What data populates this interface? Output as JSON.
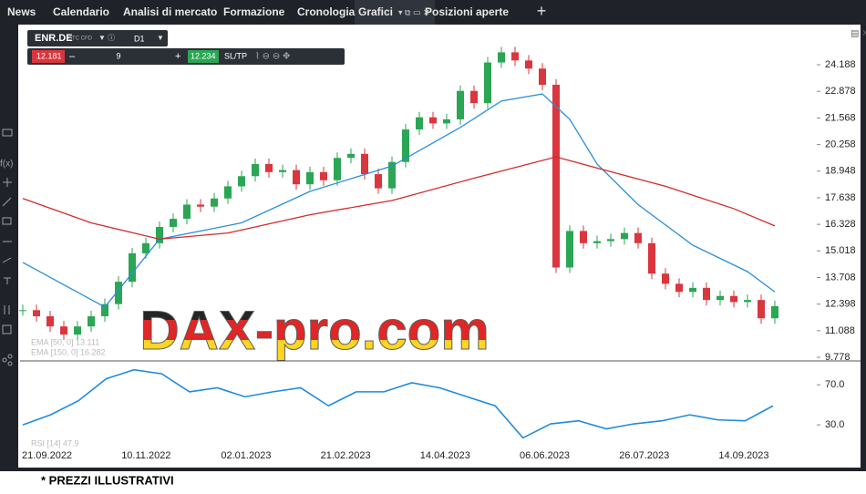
{
  "nav": {
    "tabs": [
      "News",
      "Calendario",
      "Analisi di mercato",
      "Formazione",
      "Cronologia",
      "Grafici"
    ],
    "open_positions": "Posizioni aperte",
    "add": "+"
  },
  "toolbar": {
    "symbol": "ENR.DE",
    "kind": "STC CFD",
    "timeframe": "D1",
    "sell": "12.181",
    "quantity": "9",
    "buy": "12.234",
    "sltp": "SL/TP"
  },
  "price": {
    "ylim": [
      9.6,
      26.12
    ],
    "yticks": [
      24.188,
      22.878,
      21.568,
      20.258,
      18.948,
      17.638,
      16.328,
      15.018,
      13.708,
      12.398,
      11.088,
      9.778
    ],
    "closes": [
      12.1,
      11.8,
      11.3,
      10.9,
      11.3,
      11.8,
      12.4,
      13.5,
      14.9,
      15.4,
      16.2,
      16.6,
      17.3,
      17.2,
      17.6,
      18.2,
      18.7,
      19.3,
      18.9,
      19.0,
      18.3,
      18.9,
      18.5,
      19.6,
      19.8,
      18.8,
      18.1,
      19.4,
      21.0,
      21.6,
      21.3,
      21.5,
      22.9,
      22.3,
      24.3,
      24.8,
      24.4,
      24.0,
      23.2,
      14.2,
      16.0,
      15.4,
      15.5,
      15.6,
      15.9,
      15.4,
      13.9,
      13.4,
      13.0,
      13.2,
      12.6,
      12.8,
      12.5,
      12.6,
      11.7,
      12.3
    ],
    "ema_fast": {
      "label": "EMA [50, 0]  13.111",
      "color": "#2a8fd6",
      "index": [
        0,
        6,
        10,
        16,
        21,
        27,
        32,
        35,
        38,
        40,
        42,
        45,
        49,
        53,
        55
      ],
      "values": [
        14.45,
        12.25,
        15.6,
        16.4,
        17.95,
        19.2,
        21.1,
        22.4,
        22.75,
        21.5,
        19.3,
        17.3,
        15.3,
        14.0,
        13.0
      ]
    },
    "ema_slow": {
      "label": "EMA [150, 0]  16.282",
      "color": "#d42a2a",
      "index": [
        0,
        5,
        10,
        15,
        21,
        27,
        33,
        39,
        42,
        47,
        52,
        55
      ],
      "values": [
        17.6,
        16.4,
        15.6,
        15.9,
        16.8,
        17.5,
        18.6,
        19.65,
        19.1,
        18.2,
        17.1,
        16.25
      ]
    }
  },
  "rsi": {
    "label": "RSI [14]  47.9",
    "color": "#1e8be0",
    "ylim": [
      11,
      92
    ],
    "yticks": [
      {
        "value": 70,
        "label": "70.0"
      },
      {
        "value": 30,
        "label": "30.0"
      }
    ],
    "values": [
      30,
      40,
      54,
      76,
      85,
      81,
      63,
      67,
      58,
      63,
      67,
      49,
      63,
      63,
      72,
      67,
      58,
      49,
      17,
      31,
      34,
      26,
      31,
      34,
      40,
      35,
      34,
      49
    ]
  },
  "dates": [
    "21.09.2022",
    "10.11.2022",
    "02.01.2023",
    "21.02.2023",
    "14.04.2023",
    "06.06.2023",
    "26.07.2023",
    "14.09.2023"
  ],
  "watermark": "DAX-pro.com",
  "footer": "* PREZZI ILLUSTRATIVI"
}
